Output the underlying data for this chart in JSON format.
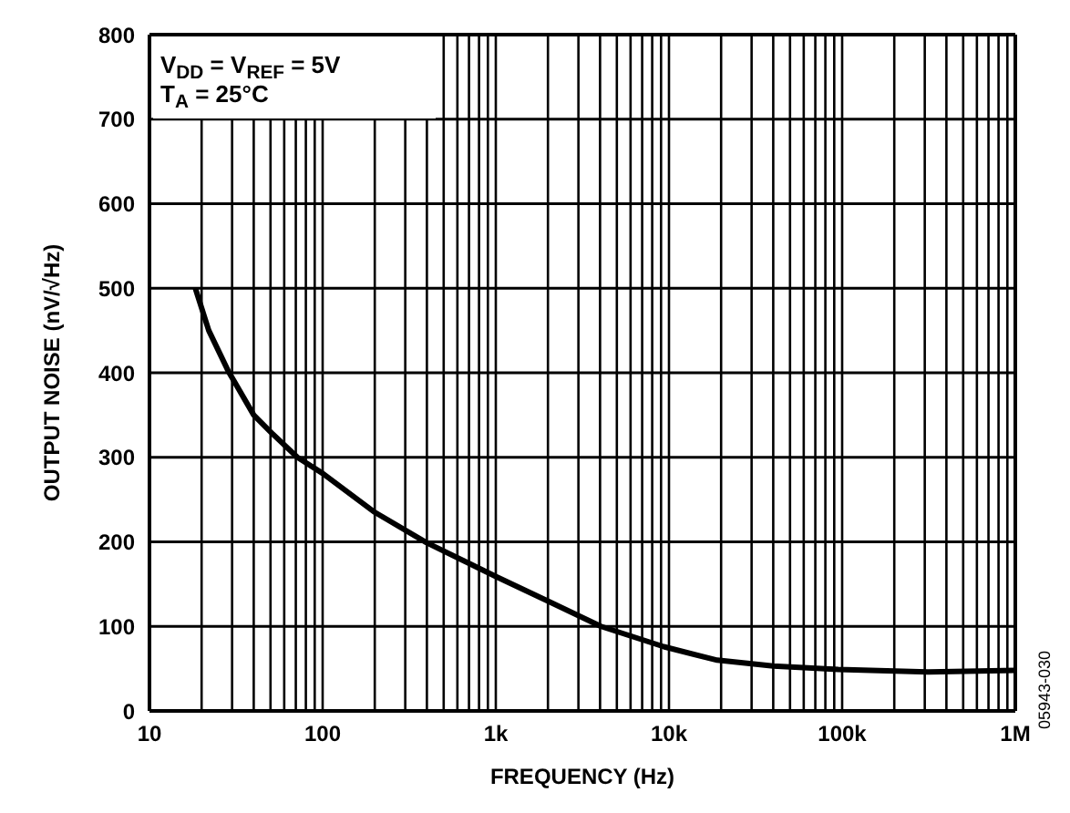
{
  "chart_data": {
    "type": "line",
    "xlabel": "FREQUENCY (Hz)",
    "ylabel": "OUTPUT NOISE (nV/√Hz)",
    "annotations": [
      "V$_{DD}$ = V$_{REF}$ = 5V",
      "T$_{A}$ = 25°C",
      "05943-030"
    ],
    "x": [
      18.4,
      22,
      28.5,
      40,
      50,
      71.5,
      100,
      200,
      398,
      1000,
      2000,
      4050,
      9330,
      19000,
      40000,
      95000,
      316000,
      1000000
    ],
    "series": [
      {
        "color": "#000000",
        "values": [
          500,
          450,
          402,
          350,
          330,
          300,
          281,
          235,
          199,
          159,
          130,
          100,
          76,
          60,
          53,
          49,
          46,
          48
        ]
      }
    ],
    "log": "x",
    "xlim": [
      10,
      1000000
    ],
    "xticks": [
      {
        "value": 10,
        "label": "10"
      },
      {
        "value": 100,
        "label": "100"
      },
      {
        "value": 1000,
        "label": "1k"
      },
      {
        "value": 10000,
        "label": "10k"
      },
      {
        "value": 100000,
        "label": "100k"
      },
      {
        "value": 1000000,
        "label": "1M"
      }
    ],
    "ylim": [
      0,
      800
    ],
    "yticks": [
      0,
      100,
      200,
      300,
      400,
      500,
      600,
      700,
      800
    ],
    "grid": true,
    "marker": "none",
    "line_style": "solid"
  }
}
